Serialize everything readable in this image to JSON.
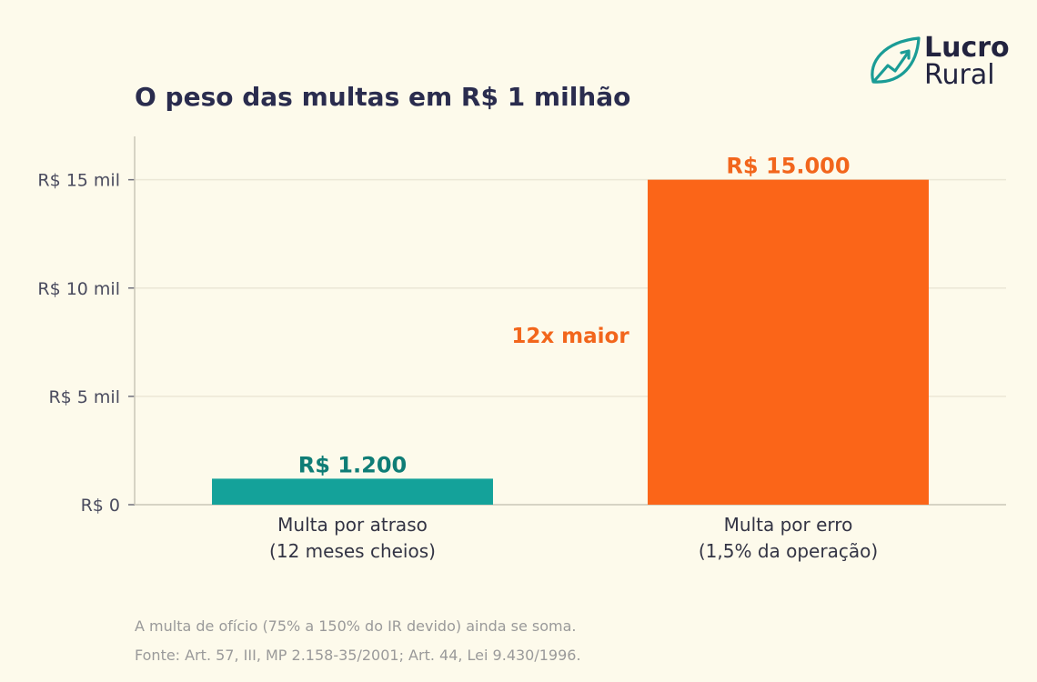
{
  "brand": {
    "line1": "Lucro",
    "line2": "Rural",
    "accent": "#1a9c96"
  },
  "chart_data": {
    "type": "bar",
    "title": "O peso das multas em R$ 1 milhão",
    "categories": [
      [
        "Multa por atraso",
        "(12 meses cheios)"
      ],
      [
        "Multa por erro",
        "(1,5% da operação)"
      ]
    ],
    "values": [
      1200,
      15000
    ],
    "value_labels": [
      "R$ 1.200",
      "R$ 15.000"
    ],
    "colors": [
      "#14a29a",
      "#fb6518"
    ],
    "label_colors": [
      "#0f7d76",
      "#f2661c"
    ],
    "ylim": [
      0,
      17000
    ],
    "yticks": [
      {
        "value": 0,
        "label": "R$ 0"
      },
      {
        "value": 5000,
        "label": "R$ 5 mil"
      },
      {
        "value": 10000,
        "label": "R$ 10 mil"
      },
      {
        "value": 15000,
        "label": "R$ 15 mil"
      }
    ],
    "grid": true,
    "annotation": {
      "text": "12x maior",
      "color": "#f2661c",
      "y": 7800
    },
    "xlabel": "",
    "ylabel": ""
  },
  "footnotes": [
    "A multa de ofício (75% a 150% do IR devido) ainda se soma.",
    "Fonte: Art. 57, III, MP 2.158-35/2001; Art. 44, Lei 9.430/1996."
  ]
}
